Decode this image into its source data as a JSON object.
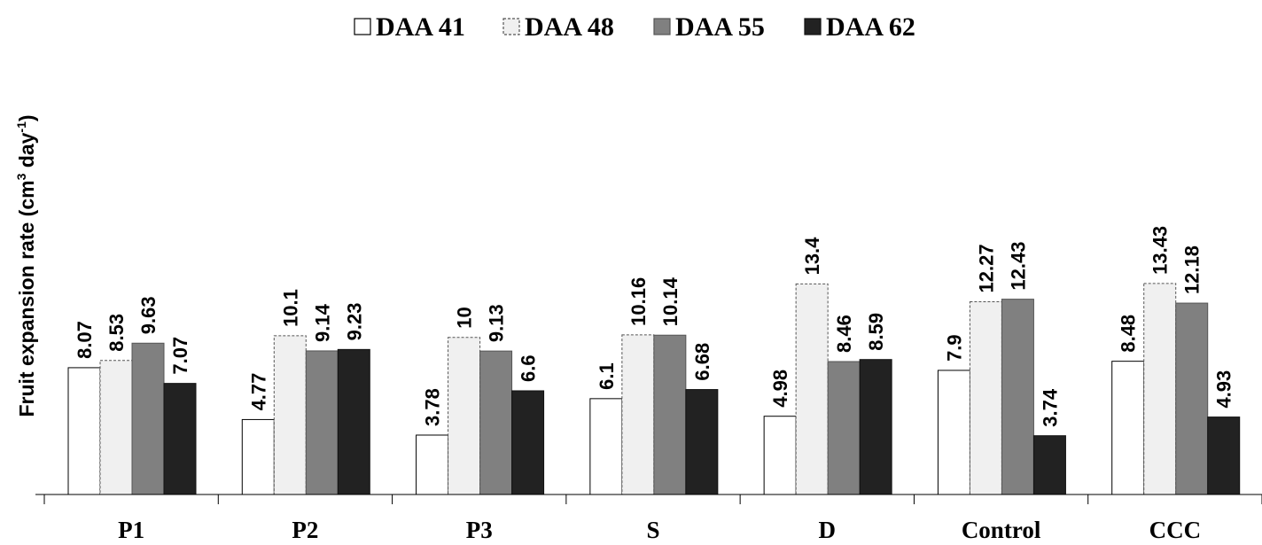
{
  "chart_data": {
    "type": "bar",
    "ylabel": {
      "main": "Fruit expansion rate (cm",
      "sup1": "3",
      "mid": " day",
      "sup2": "-1",
      "end": ")"
    },
    "ylim": [
      0,
      15
    ],
    "grid": false,
    "legend_position": "top-center",
    "categories": [
      "P1",
      "P2",
      "P3",
      "S",
      "D",
      "Control",
      "CCC"
    ],
    "series": [
      {
        "name": "DAA 41",
        "color": "#ffffff",
        "stroke": "#000000",
        "dashed": false,
        "values": [
          8.07,
          4.77,
          3.78,
          6.1,
          4.98,
          7.9,
          8.48
        ]
      },
      {
        "name": "DAA 48",
        "color": "#f0f0f0",
        "stroke": "#555555",
        "dashed": true,
        "values": [
          8.53,
          10.1,
          10,
          10.16,
          13.4,
          12.27,
          13.43
        ]
      },
      {
        "name": "DAA 55",
        "color": "#808080",
        "stroke": "#555555",
        "dashed": false,
        "values": [
          9.63,
          9.14,
          9.13,
          10.14,
          8.46,
          12.43,
          12.18
        ]
      },
      {
        "name": "DAA 62",
        "color": "#222222",
        "stroke": "#111111",
        "dashed": false,
        "values": [
          7.07,
          9.23,
          6.6,
          6.68,
          8.59,
          3.74,
          4.93
        ]
      }
    ],
    "data_labels": [
      [
        "8.07",
        "4.77",
        "3.78",
        "6.1",
        "4.98",
        "7.9",
        "8.48"
      ],
      [
        "8.53",
        "10.1",
        "10",
        "10.16",
        "13.4",
        "12.27",
        "13.43"
      ],
      [
        "9.63",
        "9.14",
        "9.13",
        "10.14",
        "8.46",
        "12.43",
        "12.18"
      ],
      [
        "7.07",
        "9.23",
        "6.6",
        "6.68",
        "8.59",
        "3.74",
        "4.93"
      ]
    ]
  }
}
